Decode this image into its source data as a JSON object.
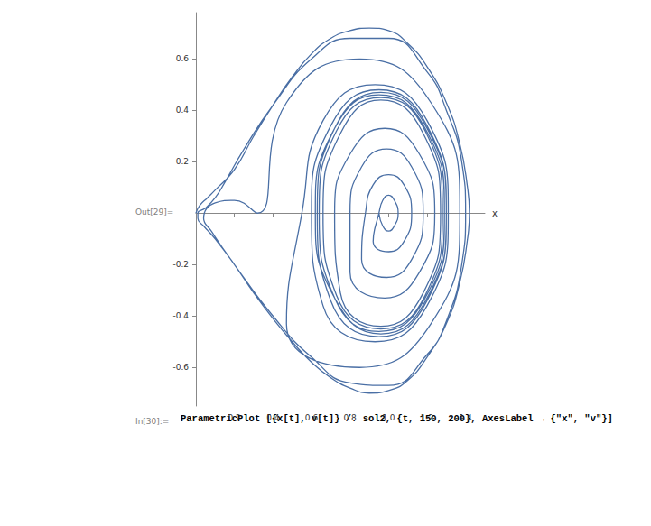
{
  "chart_data": {
    "type": "line",
    "x_label": "x",
    "color": "#4a6fa5",
    "grid": false,
    "xlim": [
      0,
      1.5
    ],
    "ylim": [
      -0.75,
      0.78
    ],
    "xticks": [
      0.2,
      0.4,
      0.6,
      0.8,
      {
        "value": 1,
        "label": "1.0"
      },
      1.2,
      1.4
    ],
    "yticks": [
      -0.6,
      -0.4,
      -0.2,
      0.2,
      0.4,
      0.6
    ],
    "annotations": [
      "Out[29]=",
      "In[30]:=",
      "ParametricPlot [{x[t], v[t]} /. sol2, {t, 150, 200}, AxesLabel → {\"x\", \"v\"}]"
    ],
    "x": [
      0,
      0.02,
      0.06,
      0.1,
      0.2,
      0.3,
      0.4,
      0.5,
      0.6,
      0.7,
      0.8,
      0.9,
      1.0,
      1.1,
      1.2,
      1.3,
      1.37,
      1.41,
      1.42,
      1.41,
      1.37,
      1.3,
      1.2,
      1.1,
      1.0,
      0.9,
      0.8,
      0.7,
      0.6,
      0.5,
      0.4,
      0.3,
      0.2,
      0.1,
      0.04,
      0.01,
      0.01,
      0.05,
      0.1,
      0.15,
      0.25,
      0.4,
      0.6,
      0.8,
      1.0,
      1.2,
      1.3,
      1.38,
      1.4,
      1.38,
      1.3,
      1.2,
      1.0,
      0.8,
      0.6,
      0.4,
      0.2,
      0.08,
      0.04,
      0.1,
      0.2,
      0.32,
      0.47,
      0.85,
      1.22,
      1.37,
      1.22,
      0.85,
      0.47,
      0.55,
      0.66,
      0.93,
      1.2,
      1.31,
      1.2,
      0.93,
      0.66,
      0.6,
      0.7,
      0.95,
      1.2,
      1.3,
      1.2,
      0.95,
      0.7,
      0.63,
      0.72,
      0.96,
      1.2,
      1.3,
      1.2,
      0.96,
      0.72,
      0.62,
      0.72,
      0.95,
      1.19,
      1.29,
      1.19,
      0.95,
      0.72,
      0.64,
      0.73,
      0.96,
      1.19,
      1.28,
      1.19,
      0.96,
      0.73,
      0.66,
      0.75,
      0.96,
      1.18,
      1.27,
      1.18,
      0.96,
      0.75,
      0.72,
      0.8,
      0.98,
      1.16,
      1.24,
      1.16,
      0.98,
      0.8,
      0.8,
      0.86,
      0.99,
      1.12,
      1.18,
      1.12,
      0.99,
      0.86,
      0.88,
      0.92,
      1.0,
      1.08,
      1.12,
      1.08,
      1.0,
      0.92,
      0.95,
      0.97,
      1.0,
      1.03,
      1.05,
      1.03,
      1.0,
      0.97,
      0.95
    ],
    "values": [
      0,
      0.03,
      0.06,
      0.09,
      0.17,
      0.3,
      0.42,
      0.53,
      0.62,
      0.68,
      0.71,
      0.72,
      0.71,
      0.66,
      0.57,
      0.43,
      0.27,
      0.1,
      0,
      -0.1,
      -0.27,
      -0.43,
      -0.56,
      -0.65,
      -0.69,
      -0.7,
      -0.68,
      -0.64,
      -0.58,
      -0.5,
      -0.41,
      -0.31,
      -0.2,
      -0.1,
      -0.05,
      -0.02,
      0,
      0.02,
      0.06,
      0.12,
      0.25,
      0.42,
      0.6,
      0.68,
      0.68,
      0.55,
      0.4,
      0.2,
      0,
      -0.2,
      -0.42,
      -0.55,
      -0.67,
      -0.66,
      -0.56,
      -0.4,
      -0.2,
      -0.07,
      -0.02,
      0.04,
      0.05,
      0,
      0.43,
      0.6,
      0.43,
      0,
      -0.43,
      -0.6,
      -0.43,
      0,
      0.36,
      0.5,
      0.36,
      0,
      -0.36,
      -0.5,
      -0.36,
      0,
      0.34,
      0.48,
      0.34,
      0,
      -0.34,
      -0.48,
      -0.34,
      0,
      0.33,
      0.47,
      0.33,
      0,
      -0.33,
      -0.47,
      -0.33,
      0,
      0.33,
      0.46,
      0.33,
      0,
      -0.33,
      -0.46,
      -0.33,
      0,
      0.32,
      0.45,
      0.32,
      0,
      -0.32,
      -0.45,
      -0.32,
      0,
      0.31,
      0.44,
      0.31,
      0,
      -0.31,
      -0.44,
      -0.31,
      0,
      0.23,
      0.33,
      0.23,
      0,
      -0.23,
      -0.33,
      -0.23,
      0,
      0.18,
      0.25,
      0.18,
      0,
      -0.18,
      -0.25,
      -0.18,
      0,
      0.11,
      0.15,
      0.11,
      0,
      -0.11,
      -0.15,
      -0.11,
      0,
      0.05,
      0.07,
      0.05,
      0,
      -0.05,
      -0.07,
      -0.05,
      0
    ]
  }
}
